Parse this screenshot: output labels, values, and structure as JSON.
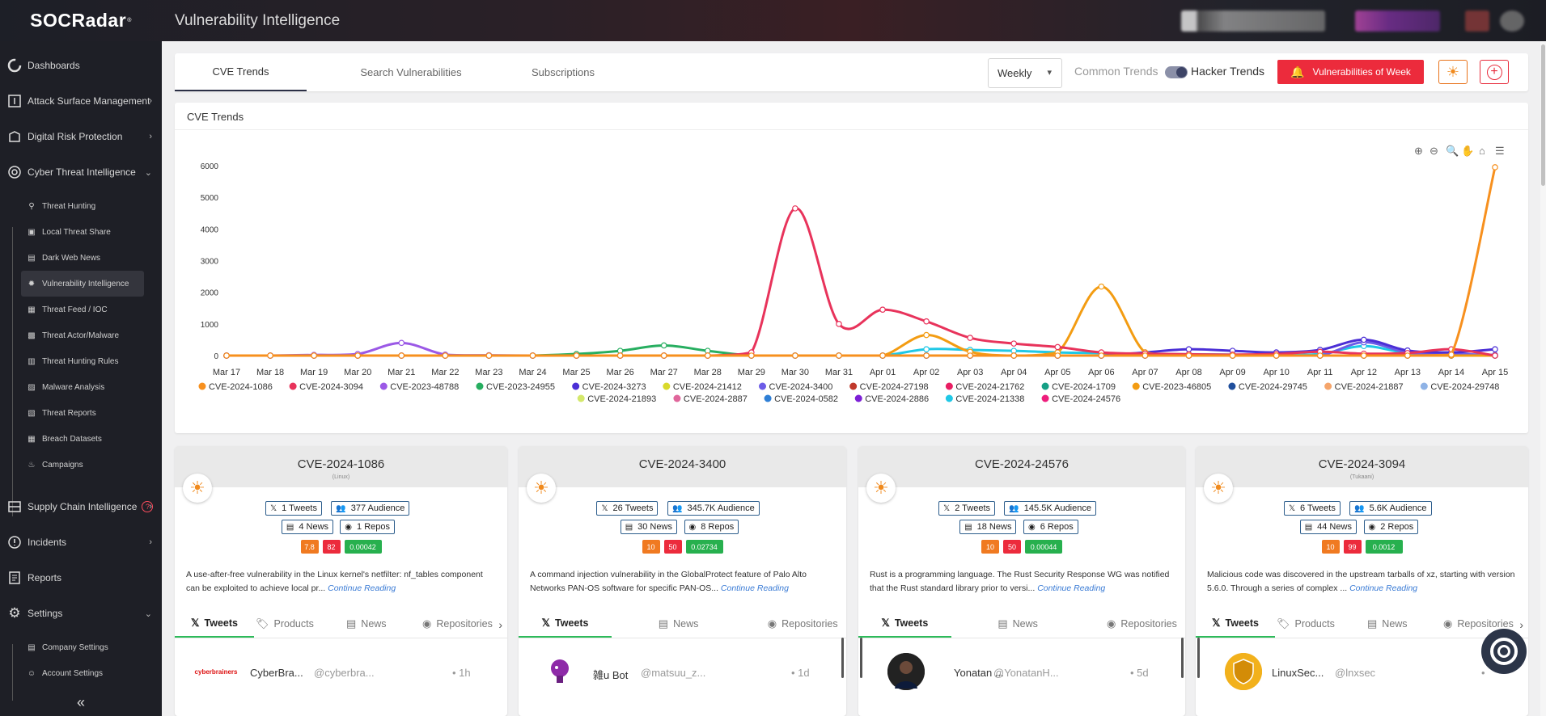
{
  "app": {
    "brand": "SOCRadar",
    "title": "Vulnerability Intelligence"
  },
  "sidebar": {
    "main": [
      {
        "label": "Dashboards",
        "icon": "dashboard-icon"
      },
      {
        "label": "Attack Surface Management",
        "icon": "asm-icon"
      },
      {
        "label": "Digital Risk Protection",
        "icon": "drp-icon"
      },
      {
        "label": "Cyber Threat Intelligence",
        "icon": "cti-icon"
      }
    ],
    "cti_items": [
      {
        "label": "Threat Hunting",
        "icon": "search-icon"
      },
      {
        "label": "Local Threat Share",
        "icon": "share-icon"
      },
      {
        "label": "Dark Web News",
        "icon": "news-icon"
      },
      {
        "label": "Vulnerability Intelligence",
        "icon": "bug-icon"
      },
      {
        "label": "Threat Feed / IOC",
        "icon": "feed-icon"
      },
      {
        "label": "Threat Actor/Malware",
        "icon": "actor-icon"
      },
      {
        "label": "Threat Hunting Rules",
        "icon": "rules-icon"
      },
      {
        "label": "Malware Analysis",
        "icon": "malware-icon"
      },
      {
        "label": "Threat Reports",
        "icon": "report-icon"
      },
      {
        "label": "Breach Datasets",
        "icon": "dataset-icon"
      },
      {
        "label": "Campaigns",
        "icon": "campaign-icon"
      }
    ],
    "main2": [
      {
        "label": "Supply Chain Intelligence",
        "icon": "supply-chain-icon"
      },
      {
        "label": "Incidents",
        "icon": "incidents-icon"
      },
      {
        "label": "Reports",
        "icon": "reports-icon"
      },
      {
        "label": "Settings",
        "icon": "gear-icon"
      }
    ],
    "settings_items": [
      {
        "label": "Company Settings",
        "icon": "company-icon"
      },
      {
        "label": "Account Settings",
        "icon": "account-icon"
      }
    ],
    "help_mark": "?",
    "collapse_glyph": "«"
  },
  "tabs": [
    {
      "label": "CVE Trends",
      "active": true
    },
    {
      "label": "Search Vulnerabilities",
      "active": false
    },
    {
      "label": "Subscriptions",
      "active": false
    }
  ],
  "controls": {
    "period": "Weekly",
    "common_trends": "Common Trends",
    "hacker_trends": "Hacker Trends",
    "hacker_trends_enabled": true,
    "vuln_week": "Vulnerabilities of Week"
  },
  "chart_title": "CVE Trends",
  "chart_data": {
    "type": "line",
    "x": [
      "Mar 17",
      "Mar 18",
      "Mar 19",
      "Mar 20",
      "Mar 21",
      "Mar 22",
      "Mar 23",
      "Mar 24",
      "Mar 25",
      "Mar 26",
      "Mar 27",
      "Mar 28",
      "Mar 29",
      "Mar 30",
      "Mar 31",
      "Apr 01",
      "Apr 02",
      "Apr 03",
      "Apr 04",
      "Apr 05",
      "Apr 06",
      "Apr 07",
      "Apr 08",
      "Apr 09",
      "Apr 10",
      "Apr 11",
      "Apr 12",
      "Apr 13",
      "Apr 14",
      "Apr 15"
    ],
    "ylim": [
      0,
      6000
    ],
    "yticks": [
      0,
      1000,
      2000,
      3000,
      4000,
      5000,
      6000
    ],
    "series": [
      {
        "name": "CVE-2024-1086",
        "color": "#f7901e",
        "values": [
          0,
          0,
          0,
          0,
          0,
          0,
          0,
          0,
          0,
          0,
          0,
          0,
          0,
          0,
          0,
          0,
          0,
          0,
          0,
          0,
          0,
          0,
          0,
          0,
          0,
          0,
          0,
          0,
          30,
          5950
        ]
      },
      {
        "name": "CVE-2024-3094",
        "color": "#e8335b",
        "values": [
          0,
          0,
          0,
          0,
          0,
          0,
          0,
          0,
          0,
          0,
          0,
          0,
          100,
          4650,
          1000,
          1450,
          1080,
          560,
          380,
          270,
          100,
          60,
          40,
          30,
          50,
          120,
          60,
          80,
          200,
          0
        ]
      },
      {
        "name": "CVE-2023-48788",
        "color": "#9b59e6",
        "values": [
          0,
          0,
          20,
          50,
          400,
          30,
          10,
          0,
          0,
          0,
          0,
          0,
          0,
          0,
          0,
          0,
          0,
          0,
          0,
          0,
          0,
          0,
          0,
          0,
          0,
          0,
          0,
          0,
          0,
          0
        ]
      },
      {
        "name": "CVE-2023-24955",
        "color": "#27ae60",
        "values": [
          0,
          0,
          0,
          0,
          0,
          0,
          0,
          0,
          50,
          150,
          320,
          150,
          0,
          0,
          0,
          0,
          0,
          0,
          0,
          0,
          0,
          0,
          0,
          0,
          0,
          0,
          0,
          0,
          0,
          0
        ]
      },
      {
        "name": "CVE-2024-3273",
        "color": "#4b2fd6",
        "values": [
          0,
          0,
          0,
          0,
          0,
          0,
          0,
          0,
          0,
          0,
          0,
          0,
          0,
          0,
          0,
          0,
          0,
          0,
          0,
          0,
          0,
          100,
          200,
          150,
          100,
          180,
          500,
          160,
          100,
          200
        ]
      },
      {
        "name": "CVE-2024-21412",
        "color": "#d9d92b",
        "values": [
          0,
          0,
          0,
          0,
          0,
          0,
          0,
          0,
          0,
          0,
          0,
          0,
          0,
          0,
          0,
          0,
          0,
          0,
          0,
          0,
          0,
          0,
          0,
          0,
          0,
          0,
          0,
          0,
          0,
          0
        ]
      },
      {
        "name": "CVE-2024-3400",
        "color": "#6c5ce7",
        "values": [
          0,
          0,
          0,
          0,
          0,
          0,
          0,
          0,
          0,
          0,
          0,
          0,
          0,
          0,
          0,
          0,
          0,
          0,
          0,
          0,
          0,
          0,
          0,
          0,
          0,
          0,
          420,
          100,
          50,
          20
        ]
      },
      {
        "name": "CVE-2024-27198",
        "color": "#c0392b",
        "values": [
          0,
          0,
          0,
          0,
          0,
          0,
          0,
          0,
          0,
          0,
          0,
          0,
          0,
          0,
          0,
          0,
          0,
          0,
          0,
          0,
          0,
          0,
          0,
          0,
          0,
          0,
          0,
          0,
          0,
          0
        ]
      },
      {
        "name": "CVE-2024-21762",
        "color": "#e91e63",
        "values": [
          0,
          0,
          0,
          0,
          0,
          0,
          0,
          0,
          0,
          0,
          0,
          0,
          0,
          0,
          0,
          0,
          0,
          0,
          0,
          0,
          0,
          0,
          0,
          0,
          0,
          0,
          0,
          0,
          0,
          0
        ]
      },
      {
        "name": "CVE-2024-1709",
        "color": "#16a085",
        "values": [
          0,
          0,
          0,
          0,
          0,
          0,
          0,
          0,
          0,
          0,
          0,
          0,
          0,
          0,
          0,
          0,
          0,
          0,
          0,
          0,
          0,
          0,
          0,
          0,
          0,
          0,
          0,
          0,
          0,
          0
        ]
      },
      {
        "name": "CVE-2023-46805",
        "color": "#f39c12",
        "values": [
          0,
          0,
          0,
          0,
          0,
          0,
          0,
          0,
          0,
          0,
          0,
          0,
          0,
          0,
          0,
          0,
          650,
          120,
          0,
          100,
          2180,
          100,
          0,
          0,
          0,
          0,
          0,
          0,
          0,
          0
        ]
      },
      {
        "name": "CVE-2024-29745",
        "color": "#1f4e9c",
        "values": [
          0,
          0,
          0,
          0,
          0,
          0,
          0,
          0,
          0,
          0,
          0,
          0,
          0,
          0,
          0,
          0,
          0,
          0,
          0,
          0,
          0,
          0,
          0,
          0,
          0,
          0,
          0,
          0,
          0,
          0
        ]
      },
      {
        "name": "CVE-2024-21887",
        "color": "#f5a56b",
        "values": [
          0,
          0,
          0,
          0,
          0,
          0,
          0,
          0,
          0,
          0,
          0,
          0,
          0,
          0,
          0,
          0,
          0,
          0,
          0,
          0,
          0,
          0,
          0,
          0,
          0,
          0,
          0,
          0,
          0,
          0
        ]
      },
      {
        "name": "CVE-2024-29748",
        "color": "#8fb3e6",
        "values": [
          0,
          0,
          0,
          0,
          0,
          0,
          0,
          0,
          0,
          0,
          0,
          0,
          0,
          0,
          0,
          0,
          0,
          0,
          0,
          0,
          0,
          0,
          0,
          0,
          0,
          0,
          0,
          0,
          0,
          0
        ]
      },
      {
        "name": "CVE-2024-21893",
        "color": "#d4e86b",
        "values": [
          0,
          0,
          0,
          0,
          0,
          0,
          0,
          0,
          0,
          0,
          0,
          0,
          0,
          0,
          0,
          0,
          0,
          0,
          0,
          0,
          0,
          0,
          0,
          0,
          0,
          0,
          0,
          0,
          0,
          0
        ]
      },
      {
        "name": "CVE-2024-2887",
        "color": "#e0669b",
        "values": [
          0,
          0,
          0,
          0,
          0,
          0,
          0,
          0,
          0,
          0,
          0,
          0,
          0,
          0,
          0,
          0,
          0,
          0,
          0,
          0,
          0,
          0,
          0,
          0,
          0,
          0,
          0,
          0,
          0,
          0
        ]
      },
      {
        "name": "CVE-2024-0582",
        "color": "#2f7fd6",
        "values": [
          0,
          0,
          0,
          0,
          0,
          0,
          0,
          0,
          0,
          0,
          0,
          0,
          0,
          0,
          0,
          0,
          0,
          0,
          0,
          0,
          0,
          0,
          0,
          0,
          0,
          0,
          0,
          0,
          0,
          0
        ]
      },
      {
        "name": "CVE-2024-2886",
        "color": "#7d1fd6",
        "values": [
          0,
          0,
          0,
          0,
          0,
          0,
          0,
          0,
          0,
          0,
          0,
          0,
          0,
          0,
          0,
          0,
          0,
          0,
          0,
          0,
          0,
          0,
          0,
          0,
          0,
          0,
          0,
          0,
          0,
          0
        ]
      },
      {
        "name": "CVE-2024-21338",
        "color": "#1fc8e6",
        "values": [
          0,
          0,
          0,
          0,
          0,
          0,
          0,
          0,
          0,
          0,
          0,
          0,
          0,
          0,
          0,
          0,
          200,
          180,
          150,
          100,
          80,
          50,
          40,
          30,
          20,
          50,
          300,
          80,
          40,
          20
        ]
      },
      {
        "name": "CVE-2024-24576",
        "color": "#ee1d7c",
        "values": [
          0,
          0,
          0,
          0,
          0,
          0,
          0,
          0,
          0,
          0,
          0,
          0,
          0,
          0,
          0,
          0,
          0,
          0,
          0,
          0,
          0,
          0,
          0,
          0,
          0,
          0,
          0,
          0,
          0,
          0
        ]
      }
    ],
    "legend_position": "bottom",
    "grid": false
  },
  "cards": [
    {
      "cve": "CVE-2024-1086",
      "vendor": "(Linux)",
      "tweets": "1 Tweets",
      "audience": "377 Audience",
      "news": "4 News",
      "repos": "1 Repos",
      "scores": [
        "7.8",
        "82",
        "0.00042"
      ],
      "desc": "A use-after-free vulnerability in the Linux kernel's netfilter: nf_tables component can be exploited to achieve local pr...",
      "more": "Continue Reading",
      "tabs": [
        "Tweets",
        "Products",
        "News",
        "Repositories"
      ],
      "tweet_name": "CyberBra...",
      "tweet_handle": "@cyberbra...",
      "tweet_time": "• 1h",
      "avatar_text": "cyberbrainers"
    },
    {
      "cve": "CVE-2024-3400",
      "vendor": "",
      "tweets": "26 Tweets",
      "audience": "345.7K Audience",
      "news": "30 News",
      "repos": "8 Repos",
      "scores": [
        "10",
        "50",
        "0.02734"
      ],
      "desc": "A command injection vulnerability in the GlobalProtect feature of Palo Alto Networks PAN-OS software for specific PAN-OS...",
      "more": "Continue Reading",
      "tabs": [
        "Tweets",
        "News",
        "Repositories"
      ],
      "tweet_name": "雑u Bot",
      "tweet_handle": "@matsuu_z...",
      "tweet_time": "• 1d",
      "avatar_text": ""
    },
    {
      "cve": "CVE-2024-24576",
      "vendor": "",
      "tweets": "2 Tweets",
      "audience": "145.5K Audience",
      "news": "18 News",
      "repos": "6 Repos",
      "scores": [
        "10",
        "50",
        "0.00044"
      ],
      "desc": "Rust is a programming language. The Rust Security Response WG was notified that the Rust standard library prior to versi...",
      "more": "Continue Reading",
      "tabs": [
        "Tweets",
        "News",
        "Repositories"
      ],
      "tweet_name": "Yonatan ...",
      "tweet_handle": "@YonatanH...",
      "tweet_time": "• 5d",
      "avatar_text": ""
    },
    {
      "cve": "CVE-2024-3094",
      "vendor": "(Tukaani)",
      "tweets": "6 Tweets",
      "audience": "5.6K Audience",
      "news": "44 News",
      "repos": "2 Repos",
      "scores": [
        "10",
        "99",
        "0.0012"
      ],
      "desc": "Malicious code was discovered in the upstream tarballs of xz, starting with version 5.6.0. Through a series of complex ...",
      "more": "Continue Reading",
      "tabs": [
        "Tweets",
        "Products",
        "News",
        "Repositories"
      ],
      "tweet_name": "LinuxSec...",
      "tweet_handle": "@lnxsec",
      "tweet_time": "•",
      "avatar_text": "LinuxSec"
    }
  ]
}
